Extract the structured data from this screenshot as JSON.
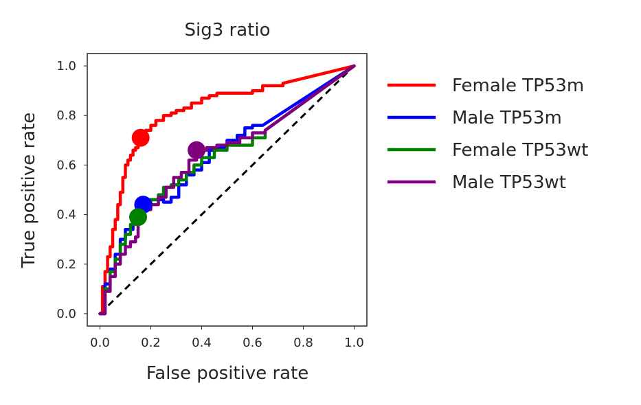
{
  "chart_data": {
    "type": "line",
    "title": "Sig3 ratio",
    "xlabel": "False positive rate",
    "ylabel": "True positive rate",
    "xlim": [
      -0.05,
      1.05
    ],
    "ylim": [
      -0.05,
      1.05
    ],
    "xticks": [
      0.0,
      0.2,
      0.4,
      0.6,
      0.8,
      1.0
    ],
    "yticks": [
      0.0,
      0.2,
      0.4,
      0.6,
      0.8,
      1.0
    ],
    "xtick_labels": [
      "0.0",
      "0.2",
      "0.4",
      "0.6",
      "0.8",
      "1.0"
    ],
    "ytick_labels": [
      "0.0",
      "0.2",
      "0.4",
      "0.6",
      "0.8",
      "1.0"
    ],
    "grid": false,
    "legend_position": "outside-right",
    "reference_line": {
      "x": [
        0,
        1
      ],
      "y": [
        0,
        1
      ],
      "color": "#000000",
      "style": "dashed"
    },
    "series": [
      {
        "name": "Female TP53m",
        "color": "#ff0000",
        "x": [
          0.0,
          0.01,
          0.02,
          0.03,
          0.04,
          0.05,
          0.06,
          0.07,
          0.08,
          0.09,
          0.1,
          0.11,
          0.12,
          0.13,
          0.14,
          0.15,
          0.16,
          0.18,
          0.2,
          0.22,
          0.25,
          0.28,
          0.3,
          0.33,
          0.36,
          0.4,
          0.43,
          0.46,
          0.5,
          0.58,
          0.6,
          0.64,
          0.68,
          0.72,
          1.0
        ],
        "y": [
          0.0,
          0.11,
          0.17,
          0.23,
          0.27,
          0.34,
          0.38,
          0.44,
          0.49,
          0.55,
          0.6,
          0.62,
          0.64,
          0.66,
          0.67,
          0.69,
          0.71,
          0.74,
          0.76,
          0.78,
          0.8,
          0.81,
          0.82,
          0.83,
          0.85,
          0.87,
          0.88,
          0.89,
          0.89,
          0.89,
          0.9,
          0.92,
          0.92,
          0.93,
          1.0
        ],
        "highlight": {
          "x": 0.16,
          "y": 0.71
        }
      },
      {
        "name": "Male TP53m",
        "color": "#0000ff",
        "x": [
          0.0,
          0.02,
          0.04,
          0.06,
          0.08,
          0.1,
          0.13,
          0.16,
          0.19,
          0.22,
          0.25,
          0.28,
          0.31,
          0.34,
          0.37,
          0.4,
          0.43,
          0.46,
          0.5,
          0.54,
          0.57,
          0.6,
          0.64,
          1.0
        ],
        "y": [
          0.0,
          0.12,
          0.18,
          0.24,
          0.3,
          0.34,
          0.38,
          0.44,
          0.46,
          0.46,
          0.45,
          0.47,
          0.52,
          0.56,
          0.58,
          0.61,
          0.66,
          0.67,
          0.7,
          0.72,
          0.75,
          0.76,
          0.76,
          1.0
        ],
        "highlight": {
          "x": 0.17,
          "y": 0.44
        }
      },
      {
        "name": "Female TP53wt",
        "color": "#008000",
        "x": [
          0.0,
          0.02,
          0.04,
          0.06,
          0.08,
          0.1,
          0.12,
          0.14,
          0.17,
          0.2,
          0.23,
          0.25,
          0.28,
          0.31,
          0.34,
          0.37,
          0.4,
          0.45,
          0.5,
          0.55,
          0.6,
          0.65,
          1.0
        ],
        "y": [
          0.0,
          0.1,
          0.17,
          0.22,
          0.28,
          0.32,
          0.36,
          0.39,
          0.43,
          0.46,
          0.48,
          0.51,
          0.52,
          0.54,
          0.57,
          0.6,
          0.63,
          0.66,
          0.68,
          0.68,
          0.71,
          0.74,
          1.0
        ],
        "highlight": {
          "x": 0.15,
          "y": 0.39
        }
      },
      {
        "name": "Male TP53wt",
        "color": "#800080",
        "x": [
          0.0,
          0.02,
          0.04,
          0.06,
          0.08,
          0.1,
          0.12,
          0.14,
          0.15,
          0.17,
          0.2,
          0.23,
          0.26,
          0.29,
          0.32,
          0.35,
          0.38,
          0.42,
          0.46,
          0.5,
          0.55,
          0.6,
          0.65,
          1.0
        ],
        "y": [
          0.0,
          0.09,
          0.15,
          0.2,
          0.24,
          0.27,
          0.29,
          0.31,
          0.37,
          0.42,
          0.44,
          0.47,
          0.51,
          0.55,
          0.57,
          0.62,
          0.66,
          0.67,
          0.68,
          0.69,
          0.71,
          0.73,
          0.74,
          1.0
        ],
        "highlight": {
          "x": 0.38,
          "y": 0.66
        }
      }
    ]
  }
}
